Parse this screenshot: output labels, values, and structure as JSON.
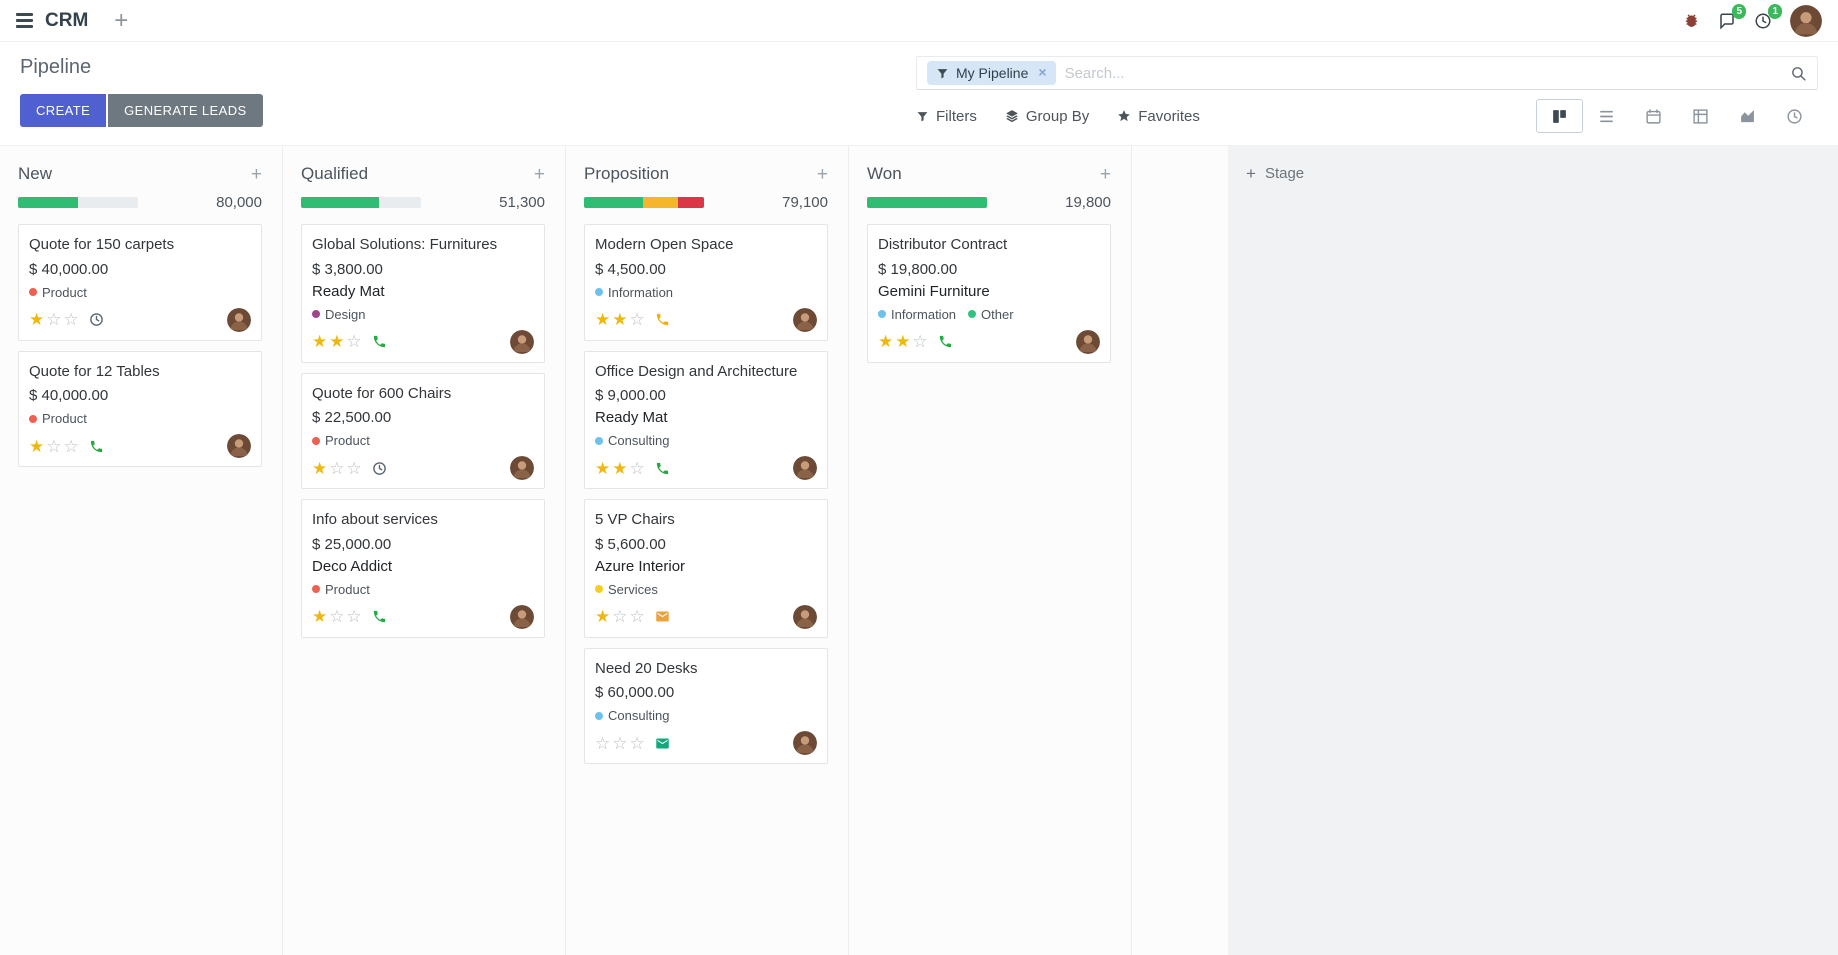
{
  "icons": {
    "plus": "+",
    "close": "×",
    "star_filled": "★",
    "star_empty": "☆"
  },
  "navbar": {
    "app_name": "CRM",
    "messages_badge": "5",
    "activities_badge": "1"
  },
  "control_panel": {
    "title": "Pipeline",
    "create_button": "CREATE",
    "generate_leads_button": "GENERATE LEADS",
    "filters": "Filters",
    "group_by": "Group By",
    "favorites": "Favorites",
    "search": {
      "facet": "My Pipeline",
      "placeholder": "Search..."
    },
    "views": [
      {
        "name": "kanban",
        "active": true
      },
      {
        "name": "list",
        "active": false
      },
      {
        "name": "calendar",
        "active": false
      },
      {
        "name": "pivot",
        "active": false
      },
      {
        "name": "graph",
        "active": false
      },
      {
        "name": "activity",
        "active": false
      }
    ]
  },
  "board": {
    "add_stage_label": "Stage",
    "columns": [
      {
        "name": "New",
        "total": "80,000",
        "progress": [
          {
            "color": "#2ebd73",
            "pct": 50
          }
        ],
        "cards": [
          {
            "title": "Quote for 150 carpets",
            "amount": "$ 40,000.00",
            "partner": "",
            "tags": [
              {
                "label": "Product",
                "color": "#f06050"
              }
            ],
            "stars": 1,
            "activity": {
              "type": "clock",
              "color": "#5b6670"
            }
          },
          {
            "title": "Quote for 12 Tables",
            "amount": "$ 40,000.00",
            "partner": "",
            "tags": [
              {
                "label": "Product",
                "color": "#f06050"
              }
            ],
            "stars": 1,
            "activity": {
              "type": "phone",
              "color": "#28a745"
            }
          }
        ]
      },
      {
        "name": "Qualified",
        "total": "51,300",
        "progress": [
          {
            "color": "#2ebd73",
            "pct": 65
          }
        ],
        "cards": [
          {
            "title": "Global Solutions: Furnitures",
            "amount": "$ 3,800.00",
            "partner": "Ready Mat",
            "tags": [
              {
                "label": "Design",
                "color": "#a24689"
              }
            ],
            "stars": 2,
            "activity": {
              "type": "phone",
              "color": "#28a745"
            }
          },
          {
            "title": "Quote for 600 Chairs",
            "amount": "$ 22,500.00",
            "partner": "",
            "tags": [
              {
                "label": "Product",
                "color": "#f06050"
              }
            ],
            "stars": 1,
            "activity": {
              "type": "clock",
              "color": "#5b6670"
            }
          },
          {
            "title": "Info about services",
            "amount": "$ 25,000.00",
            "partner": "Deco Addict",
            "tags": [
              {
                "label": "Product",
                "color": "#f06050"
              }
            ],
            "stars": 1,
            "activity": {
              "type": "phone",
              "color": "#28a745"
            }
          }
        ]
      },
      {
        "name": "Proposition",
        "total": "79,100",
        "progress": [
          {
            "color": "#2ebd73",
            "pct": 49
          },
          {
            "color": "#f5b62b",
            "pct": 29
          },
          {
            "color": "#dc3545",
            "pct": 22
          }
        ],
        "cards": [
          {
            "title": "Modern Open Space",
            "amount": "$ 4,500.00",
            "partner": "",
            "tags": [
              {
                "label": "Information",
                "color": "#6cc1ed"
              }
            ],
            "stars": 2,
            "activity": {
              "type": "phone",
              "color": "#eab308"
            }
          },
          {
            "title": "Office Design and Architecture",
            "amount": "$ 9,000.00",
            "partner": "Ready Mat",
            "tags": [
              {
                "label": "Consulting",
                "color": "#6cc1ed"
              }
            ],
            "stars": 2,
            "activity": {
              "type": "phone",
              "color": "#28a745"
            }
          },
          {
            "title": "5 VP Chairs",
            "amount": "$ 5,600.00",
            "partner": "Azure Interior",
            "tags": [
              {
                "label": "Services",
                "color": "#f7cd1f"
              }
            ],
            "stars": 1,
            "activity": {
              "type": "envelope",
              "color": "#e8a33c"
            }
          },
          {
            "title": "Need 20 Desks",
            "amount": "$ 60,000.00",
            "partner": "",
            "tags": [
              {
                "label": "Consulting",
                "color": "#6cc1ed"
              }
            ],
            "stars": 0,
            "activity": {
              "type": "envelope",
              "color": "#12a87b"
            }
          }
        ]
      },
      {
        "name": "Won",
        "total": "19,800",
        "progress": [
          {
            "color": "#2ebd73",
            "pct": 100
          }
        ],
        "cards": [
          {
            "title": "Distributor Contract",
            "amount": "$ 19,800.00",
            "partner": "Gemini Furniture",
            "tags": [
              {
                "label": "Information",
                "color": "#6cc1ed"
              },
              {
                "label": "Other",
                "color": "#30c381"
              }
            ],
            "stars": 2,
            "activity": {
              "type": "phone",
              "color": "#28a745"
            }
          }
        ]
      }
    ]
  }
}
